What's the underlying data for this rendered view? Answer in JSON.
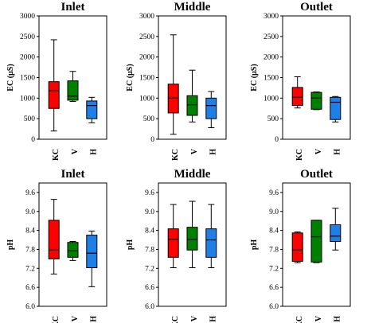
{
  "colors": {
    "KC": "#ff0000",
    "V": "#008000",
    "H": "#1e7fe6"
  },
  "chart_data": [
    {
      "type": "box",
      "title": "Inlet",
      "ylabel": "EC (µS)",
      "ylim": [
        0,
        3000
      ],
      "yticks": [
        "0",
        "500",
        "1000",
        "1500",
        "2000",
        "2500",
        "3000"
      ],
      "categories": [
        "KC",
        "V",
        "H"
      ],
      "boxes": [
        {
          "min": 200,
          "q1": 750,
          "median": 1180,
          "q3": 1400,
          "max": 2420
        },
        {
          "min": 920,
          "q1": 950,
          "median": 1050,
          "q3": 1420,
          "max": 1650
        },
        {
          "min": 400,
          "q1": 500,
          "median": 820,
          "q3": 930,
          "max": 1020
        }
      ]
    },
    {
      "type": "box",
      "title": "Middle",
      "ylabel": "EC (µS)",
      "ylim": [
        0,
        3000
      ],
      "yticks": [
        "0",
        "500",
        "1000",
        "1500",
        "2000",
        "2500",
        "3000"
      ],
      "categories": [
        "KC",
        "V",
        "H"
      ],
      "boxes": [
        {
          "min": 120,
          "q1": 640,
          "median": 1000,
          "q3": 1340,
          "max": 2540
        },
        {
          "min": 420,
          "q1": 580,
          "median": 840,
          "q3": 1060,
          "max": 1680
        },
        {
          "min": 280,
          "q1": 500,
          "median": 820,
          "q3": 1000,
          "max": 1160
        }
      ]
    },
    {
      "type": "box",
      "title": "Outlet",
      "ylabel": "EC (µS)",
      "ylim": [
        0,
        3000
      ],
      "yticks": [
        "0",
        "500",
        "1000",
        "1500",
        "2000",
        "2500",
        "3000"
      ],
      "categories": [
        "KC",
        "V",
        "H"
      ],
      "boxes": [
        {
          "min": 760,
          "q1": 820,
          "median": 1020,
          "q3": 1260,
          "max": 1520
        },
        {
          "min": 720,
          "q1": 730,
          "median": 1000,
          "q3": 1140,
          "max": 1150
        },
        {
          "min": 420,
          "q1": 480,
          "median": 900,
          "q3": 1020,
          "max": 1040
        }
      ]
    },
    {
      "type": "box",
      "title": "Inlet",
      "ylabel": "pH",
      "ylim": [
        6.0,
        9.9
      ],
      "yticks": [
        "6.0",
        "6.6",
        "7.2",
        "7.8",
        "8.4",
        "9.0",
        "9.6"
      ],
      "categories": [
        "KC",
        "V",
        "H"
      ],
      "boxes": [
        {
          "min": 7.02,
          "q1": 7.5,
          "median": 7.78,
          "q3": 8.72,
          "max": 9.38
        },
        {
          "min": 7.45,
          "q1": 7.55,
          "median": 7.75,
          "q3": 8.02,
          "max": 8.05
        },
        {
          "min": 6.62,
          "q1": 7.22,
          "median": 7.68,
          "q3": 8.25,
          "max": 8.38
        }
      ]
    },
    {
      "type": "box",
      "title": "Middle",
      "ylabel": "pH",
      "ylim": [
        6.0,
        9.9
      ],
      "yticks": [
        "6.0",
        "6.6",
        "7.2",
        "7.8",
        "8.4",
        "9.0",
        "9.6"
      ],
      "categories": [
        "KC",
        "V",
        "H"
      ],
      "boxes": [
        {
          "min": 7.22,
          "q1": 7.55,
          "median": 8.12,
          "q3": 8.45,
          "max": 9.22
        },
        {
          "min": 7.22,
          "q1": 7.78,
          "median": 8.12,
          "q3": 8.5,
          "max": 9.32
        },
        {
          "min": 7.22,
          "q1": 7.55,
          "median": 8.1,
          "q3": 8.45,
          "max": 9.22
        }
      ]
    },
    {
      "type": "box",
      "title": "Outlet",
      "ylabel": "pH",
      "ylim": [
        6.0,
        9.9
      ],
      "yticks": [
        "6.0",
        "6.6",
        "7.2",
        "7.8",
        "8.4",
        "9.0",
        "9.6"
      ],
      "categories": [
        "KC",
        "V",
        "H"
      ],
      "boxes": [
        {
          "min": 7.38,
          "q1": 7.42,
          "median": 7.78,
          "q3": 8.32,
          "max": 8.35
        },
        {
          "min": 7.38,
          "q1": 7.4,
          "median": 8.2,
          "q3": 8.72,
          "max": 8.72
        },
        {
          "min": 7.78,
          "q1": 8.05,
          "median": 8.22,
          "q3": 8.58,
          "max": 9.1
        }
      ]
    }
  ]
}
